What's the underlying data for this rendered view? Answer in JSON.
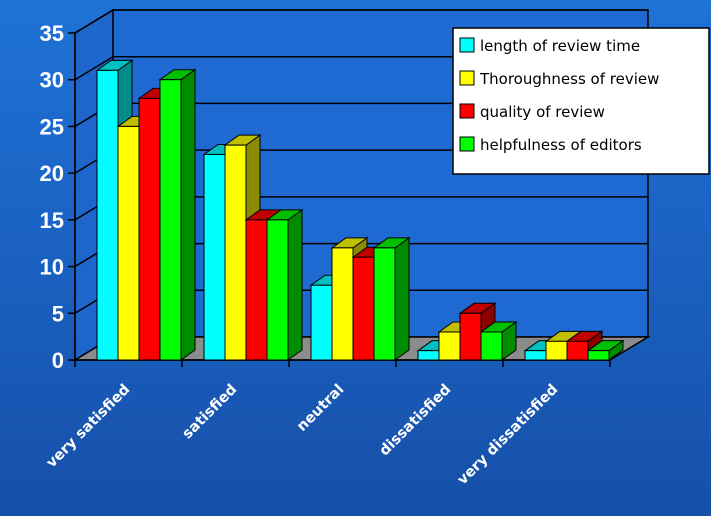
{
  "chart_data": {
    "type": "bar",
    "categories": [
      "very satisfied",
      "satisfied",
      "neutral",
      "dissatisfied",
      "very dissatisfied"
    ],
    "series": [
      {
        "name": "length of review time",
        "values": [
          31,
          22,
          8,
          1,
          1
        ],
        "color": "#00ffff"
      },
      {
        "name": "Thoroughness of review",
        "values": [
          25,
          23,
          12,
          3,
          2
        ],
        "color": "#ffff00"
      },
      {
        "name": "quality of review",
        "values": [
          28,
          15,
          11,
          5,
          2
        ],
        "color": "#ff0000"
      },
      {
        "name": "helpfulness of editors",
        "values": [
          30,
          15,
          12,
          3,
          1
        ],
        "color": "#00ff00"
      }
    ],
    "ylim": [
      0,
      35
    ],
    "yticks": [
      0,
      5,
      10,
      15,
      20,
      25,
      30,
      35
    ],
    "grid": true,
    "legend_position": "top-right",
    "style": "3d"
  }
}
